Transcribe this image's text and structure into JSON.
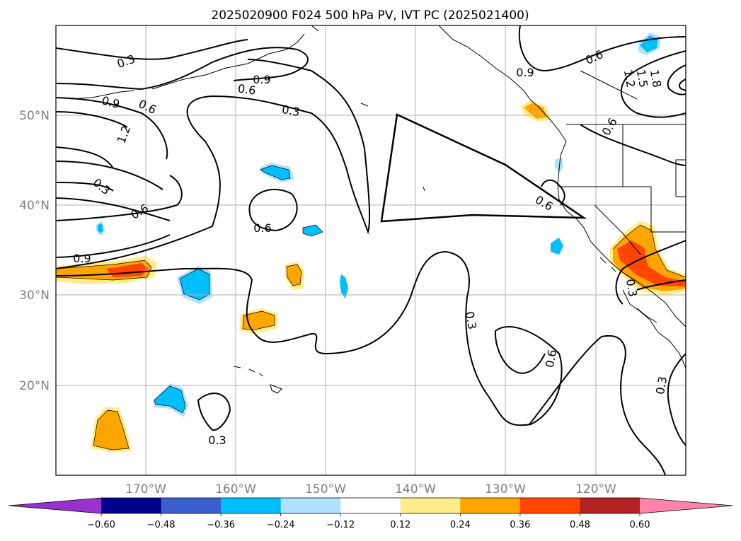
{
  "title": "2025020900 F024 500 hPa PV, IVT PC (2025021400)",
  "lat_labels": [
    "50°N",
    "40°N",
    "30°N",
    "20°N"
  ],
  "lon_labels": [
    "170°W",
    "160°W",
    "150°W",
    "140°W",
    "130°W",
    "120°W"
  ],
  "contour_labels": {
    "c1": "0.3",
    "c2": "0.9",
    "c3": "0.6",
    "c4": "0.9",
    "c5": "0.6",
    "c6": "1.2",
    "c7": "0.3",
    "c8": "0.6",
    "c9": "0.9",
    "c10": "0.6",
    "c11": "0.3",
    "c12": "0.9",
    "c13": "0.6",
    "c14": "1.5",
    "c15": "1.8",
    "c16": "1.2",
    "c17": "0.6",
    "c18": "0.6",
    "c19": "0.3",
    "c20": "0.3",
    "c21": "0.6",
    "c22": "0.3",
    "c23": "0.3"
  },
  "colorbar": {
    "ticks": [
      "−0.60",
      "−0.48",
      "−0.36",
      "−0.24",
      "−0.12",
      "0.12",
      "0.24",
      "0.36",
      "0.48",
      "0.60"
    ],
    "colors": [
      "#9932cc",
      "#00008b",
      "#3a5fcd",
      "#00bfff",
      "#b0e2ff",
      "#ffffff",
      "#ffec8b",
      "#ffa500",
      "#ff4500",
      "#b22222",
      "#ff82ab"
    ]
  }
}
